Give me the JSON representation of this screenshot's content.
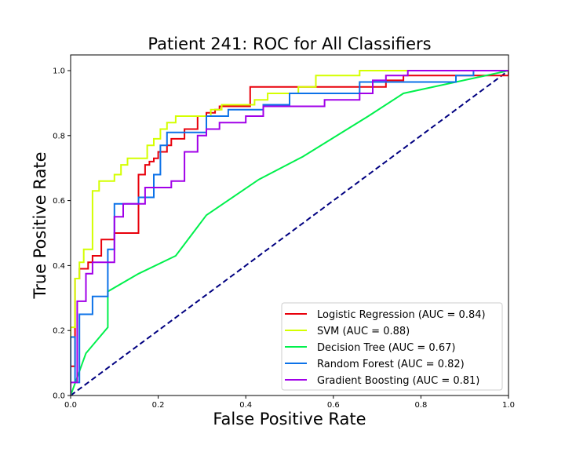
{
  "chart_data": {
    "type": "line",
    "title": "Patient 241: ROC for All Classifiers",
    "xlabel": "False Positive Rate",
    "ylabel": "True Positive Rate",
    "xlim": [
      0,
      1.0
    ],
    "ylim": [
      0,
      1.05
    ],
    "xticks": [
      0.0,
      0.2,
      0.4,
      0.6,
      0.8,
      1.0
    ],
    "yticks": [
      0.0,
      0.2,
      0.4,
      0.6,
      0.8,
      1.0
    ],
    "xtick_labels": [
      "0.0",
      "0.2",
      "0.4",
      "0.6",
      "0.8",
      "1.0"
    ],
    "ytick_labels": [
      "0.0",
      "0.2",
      "0.4",
      "0.6",
      "0.8",
      "1.0"
    ],
    "grid": false,
    "legend_position": "lower-right",
    "series": [
      {
        "name": "Logistic Regression (AUC = 0.84)",
        "color": "#e8000b",
        "x": [
          0.0,
          0.0,
          0.01,
          0.01,
          0.02,
          0.02,
          0.04,
          0.04,
          0.05,
          0.05,
          0.07,
          0.07,
          0.1,
          0.1,
          0.155,
          0.155,
          0.17,
          0.17,
          0.18,
          0.18,
          0.19,
          0.19,
          0.2,
          0.2,
          0.22,
          0.22,
          0.23,
          0.23,
          0.26,
          0.26,
          0.29,
          0.29,
          0.31,
          0.31,
          0.33,
          0.33,
          0.34,
          0.34,
          0.41,
          0.41,
          0.52,
          0.52,
          0.72,
          0.72,
          0.76,
          0.76,
          1.0,
          1.0
        ],
        "y": [
          0.0,
          0.09,
          0.09,
          0.36,
          0.36,
          0.39,
          0.39,
          0.41,
          0.41,
          0.43,
          0.43,
          0.48,
          0.48,
          0.5,
          0.5,
          0.68,
          0.68,
          0.71,
          0.71,
          0.72,
          0.72,
          0.73,
          0.73,
          0.75,
          0.75,
          0.77,
          0.77,
          0.79,
          0.79,
          0.82,
          0.82,
          0.86,
          0.86,
          0.87,
          0.87,
          0.88,
          0.88,
          0.89,
          0.89,
          0.95,
          0.95,
          0.95,
          0.95,
          0.97,
          0.97,
          0.985,
          0.985,
          1.0
        ]
      },
      {
        "name": "SVM (AUC = 0.88)",
        "color": "#d4ff00",
        "x": [
          0.0,
          0.0,
          0.01,
          0.01,
          0.02,
          0.02,
          0.03,
          0.03,
          0.05,
          0.05,
          0.065,
          0.065,
          0.1,
          0.1,
          0.115,
          0.115,
          0.13,
          0.13,
          0.175,
          0.175,
          0.19,
          0.19,
          0.205,
          0.205,
          0.22,
          0.22,
          0.24,
          0.24,
          0.32,
          0.32,
          0.345,
          0.345,
          0.42,
          0.42,
          0.45,
          0.45,
          0.52,
          0.52,
          0.56,
          0.56,
          0.66,
          0.66,
          1.0
        ],
        "y": [
          0.0,
          0.21,
          0.21,
          0.36,
          0.36,
          0.41,
          0.41,
          0.45,
          0.45,
          0.63,
          0.63,
          0.66,
          0.66,
          0.68,
          0.68,
          0.71,
          0.71,
          0.73,
          0.73,
          0.77,
          0.77,
          0.79,
          0.79,
          0.82,
          0.82,
          0.84,
          0.84,
          0.86,
          0.86,
          0.88,
          0.88,
          0.895,
          0.895,
          0.91,
          0.91,
          0.93,
          0.93,
          0.95,
          0.95,
          0.985,
          0.985,
          1.0,
          1.0
        ]
      },
      {
        "name": "Decision Tree (AUC = 0.67)",
        "color": "#00f04c",
        "x": [
          0.0,
          0.035,
          0.085,
          0.085,
          0.155,
          0.24,
          0.31,
          0.43,
          0.53,
          0.68,
          0.76,
          1.0
        ],
        "y": [
          0.0,
          0.13,
          0.21,
          0.32,
          0.375,
          0.43,
          0.555,
          0.665,
          0.735,
          0.86,
          0.93,
          1.0
        ]
      },
      {
        "name": "Random Forest (AUC = 0.82)",
        "color": "#0c72e8",
        "x": [
          0.0,
          0.0,
          0.01,
          0.01,
          0.02,
          0.02,
          0.05,
          0.05,
          0.085,
          0.085,
          0.1,
          0.1,
          0.155,
          0.155,
          0.19,
          0.19,
          0.205,
          0.205,
          0.22,
          0.22,
          0.31,
          0.31,
          0.36,
          0.36,
          0.44,
          0.44,
          0.5,
          0.5,
          0.66,
          0.66,
          0.88,
          0.88,
          0.92,
          0.92,
          1.0
        ],
        "y": [
          0.0,
          0.18,
          0.18,
          0.04,
          0.04,
          0.25,
          0.25,
          0.305,
          0.305,
          0.45,
          0.45,
          0.59,
          0.59,
          0.61,
          0.61,
          0.68,
          0.68,
          0.77,
          0.77,
          0.81,
          0.81,
          0.86,
          0.86,
          0.88,
          0.88,
          0.895,
          0.895,
          0.93,
          0.93,
          0.965,
          0.965,
          0.985,
          0.985,
          1.0,
          1.0
        ]
      },
      {
        "name": "Gradient Boosting (AUC = 0.81)",
        "color": "#a100e8",
        "x": [
          0.0,
          0.0,
          0.015,
          0.015,
          0.035,
          0.035,
          0.05,
          0.05,
          0.1,
          0.1,
          0.12,
          0.12,
          0.17,
          0.17,
          0.23,
          0.23,
          0.26,
          0.26,
          0.29,
          0.29,
          0.31,
          0.31,
          0.34,
          0.34,
          0.4,
          0.4,
          0.44,
          0.44,
          0.58,
          0.58,
          0.66,
          0.66,
          0.69,
          0.69,
          0.72,
          0.72,
          0.77,
          0.77,
          1.0
        ],
        "y": [
          0.0,
          0.04,
          0.04,
          0.29,
          0.29,
          0.375,
          0.375,
          0.41,
          0.41,
          0.55,
          0.55,
          0.59,
          0.59,
          0.64,
          0.64,
          0.66,
          0.66,
          0.75,
          0.75,
          0.8,
          0.8,
          0.82,
          0.82,
          0.84,
          0.84,
          0.86,
          0.86,
          0.89,
          0.89,
          0.91,
          0.91,
          0.93,
          0.93,
          0.97,
          0.97,
          0.985,
          0.985,
          1.0,
          1.0
        ]
      }
    ],
    "reference_line": {
      "color": "#000080",
      "dash": "dashed",
      "x": [
        0.0,
        1.0
      ],
      "y": [
        0.0,
        1.0
      ]
    }
  }
}
